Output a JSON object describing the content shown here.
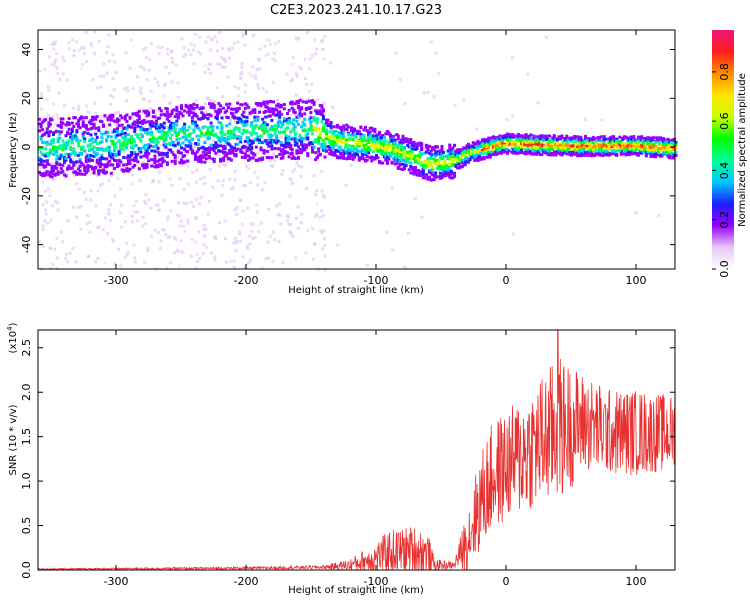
{
  "title": "C2E3.2023.241.10.17.G23",
  "chart_data": [
    {
      "type": "heatmap",
      "xlabel": "Height of straight line (km)",
      "ylabel": "Frequency (Hz)",
      "xlim": [
        -360,
        130
      ],
      "ylim": [
        -50,
        48
      ],
      "xticks": [
        -300,
        -200,
        -100,
        0,
        100
      ],
      "yticks": [
        -40,
        -20,
        0,
        20,
        40
      ],
      "ridge": [
        {
          "x": -360,
          "y": 0
        },
        {
          "x": -300,
          "y": 2
        },
        {
          "x": -250,
          "y": 6
        },
        {
          "x": -200,
          "y": 7
        },
        {
          "x": -150,
          "y": 8
        },
        {
          "x": -130,
          "y": 3
        },
        {
          "x": -110,
          "y": 2
        },
        {
          "x": -90,
          "y": 0
        },
        {
          "x": -70,
          "y": -4
        },
        {
          "x": -60,
          "y": -6
        },
        {
          "x": -50,
          "y": -6
        },
        {
          "x": -40,
          "y": -5
        },
        {
          "x": -30,
          "y": -2
        },
        {
          "x": -10,
          "y": 1
        },
        {
          "x": 0,
          "y": 2
        },
        {
          "x": 50,
          "y": 1
        },
        {
          "x": 100,
          "y": 1
        },
        {
          "x": 130,
          "y": 0
        }
      ],
      "colorbar": {
        "label": "Normalized spectral amplitude",
        "ticks": [
          "0.0",
          "0.2",
          "0.4",
          "0.6",
          "0.8"
        ],
        "range": [
          0,
          0.97
        ],
        "colors": [
          "#ffffff",
          "#e6c8f5",
          "#9600ff",
          "#1e1eff",
          "#00c8ff",
          "#00ff96",
          "#00ff00",
          "#c8ff00",
          "#ffe600",
          "#ff8c00",
          "#ff1e1e",
          "#f01478"
        ]
      }
    },
    {
      "type": "line",
      "xlabel": "Height of straight line (km)",
      "ylabel": "SNR (10 * v/v)",
      "yscale_label": "(x10",
      "yscale_exp": "4",
      "yscale_close": ")",
      "xlim": [
        -360,
        130
      ],
      "ylim": [
        0,
        2.7
      ],
      "xticks": [
        -300,
        -200,
        -100,
        0,
        100
      ],
      "yticks": [
        "0.0",
        "0.5",
        "1.0",
        "1.5",
        "2.0",
        "2.5"
      ],
      "color": "#e8302f",
      "envelope": [
        {
          "x": -360,
          "base": 0.01,
          "amp": 0.01
        },
        {
          "x": -200,
          "base": 0.02,
          "amp": 0.02
        },
        {
          "x": -140,
          "base": 0.03,
          "amp": 0.03
        },
        {
          "x": -120,
          "base": 0.05,
          "amp": 0.1
        },
        {
          "x": -100,
          "base": 0.12,
          "amp": 0.25
        },
        {
          "x": -90,
          "base": 0.18,
          "amp": 0.35
        },
        {
          "x": -70,
          "base": 0.2,
          "amp": 0.4
        },
        {
          "x": -60,
          "base": 0.15,
          "amp": 0.35
        },
        {
          "x": -55,
          "base": 0.05,
          "amp": 0.1
        },
        {
          "x": -40,
          "base": 0.05,
          "amp": 0.05
        },
        {
          "x": -30,
          "base": 0.3,
          "amp": 0.5
        },
        {
          "x": -20,
          "base": 0.7,
          "amp": 0.8
        },
        {
          "x": -10,
          "base": 1.0,
          "amp": 0.9
        },
        {
          "x": 0,
          "base": 1.1,
          "amp": 0.9
        },
        {
          "x": 20,
          "base": 1.3,
          "amp": 1.0
        },
        {
          "x": 40,
          "base": 1.5,
          "amp": 1.2
        },
        {
          "x": 60,
          "base": 1.6,
          "amp": 0.8
        },
        {
          "x": 80,
          "base": 1.5,
          "amp": 0.7
        },
        {
          "x": 100,
          "base": 1.5,
          "amp": 0.7
        },
        {
          "x": 130,
          "base": 1.5,
          "amp": 0.6
        }
      ],
      "peak": {
        "x": 40,
        "y": 2.7
      }
    }
  ]
}
